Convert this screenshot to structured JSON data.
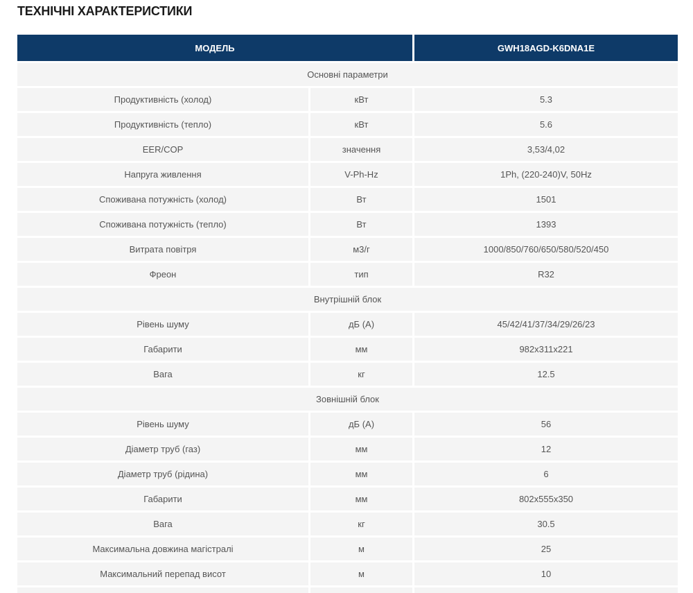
{
  "title": "ТЕХНІЧНІ ХАРАКТЕРИСТИКИ",
  "colors": {
    "header_bg": "#0e3a68",
    "header_text": "#ffffff",
    "row_bg": "#f4f4f4",
    "row_text": "#555555",
    "title_text": "#1b1b1b",
    "page_bg": "#ffffff"
  },
  "table": {
    "header": {
      "model_label": "МОДЕЛЬ",
      "model_value": "GWH18AGD-K6DNA1E"
    },
    "rows": [
      {
        "type": "section",
        "label": "Основні параметри"
      },
      {
        "type": "data",
        "param": "Продуктивність (холод)",
        "unit": "кВт",
        "value": "5.3"
      },
      {
        "type": "data",
        "param": "Продуктивність (тепло)",
        "unit": "кВт",
        "value": "5.6"
      },
      {
        "type": "data",
        "param": "EER/COP",
        "unit": "значення",
        "value": "3,53/4,02"
      },
      {
        "type": "data",
        "param": "Напруга живлення",
        "unit": "V-Ph-Hz",
        "value": "1Ph, (220-240)V, 50Hz"
      },
      {
        "type": "data",
        "param": "Споживана потужність (холод)",
        "unit": "Вт",
        "value": "1501"
      },
      {
        "type": "data",
        "param": "Споживана потужність (тепло)",
        "unit": "Вт",
        "value": "1393"
      },
      {
        "type": "data",
        "param": "Витрата повітря",
        "unit": "м3/г",
        "value": "1000/850/760/650/580/520/450"
      },
      {
        "type": "data",
        "param": "Фреон",
        "unit": "тип",
        "value": "R32"
      },
      {
        "type": "section",
        "label": "Внутрішній блок"
      },
      {
        "type": "data",
        "param": "Рівень шуму",
        "unit": "дБ (А)",
        "value": "45/42/41/37/34/29/26/23"
      },
      {
        "type": "data",
        "param": "Габарити",
        "unit": "мм",
        "value": "982x311x221"
      },
      {
        "type": "data",
        "param": "Вага",
        "unit": "кг",
        "value": "12.5"
      },
      {
        "type": "section",
        "label": "Зовнішній блок"
      },
      {
        "type": "data",
        "param": "Рівень шуму",
        "unit": "дБ (А)",
        "value": "56"
      },
      {
        "type": "data",
        "param": "Діаметр труб (газ)",
        "unit": "мм",
        "value": "12"
      },
      {
        "type": "data",
        "param": "Діаметр труб (рідина)",
        "unit": "мм",
        "value": "6"
      },
      {
        "type": "data",
        "param": "Габарити",
        "unit": "мм",
        "value": "802x555x350"
      },
      {
        "type": "data",
        "param": "Вага",
        "unit": "кг",
        "value": "30.5"
      },
      {
        "type": "data",
        "param": "Максимальна довжина магістралі",
        "unit": "м",
        "value": "25"
      },
      {
        "type": "data",
        "param": "Максимальний перепад висот",
        "unit": "м",
        "value": "10"
      },
      {
        "type": "partial"
      }
    ]
  }
}
